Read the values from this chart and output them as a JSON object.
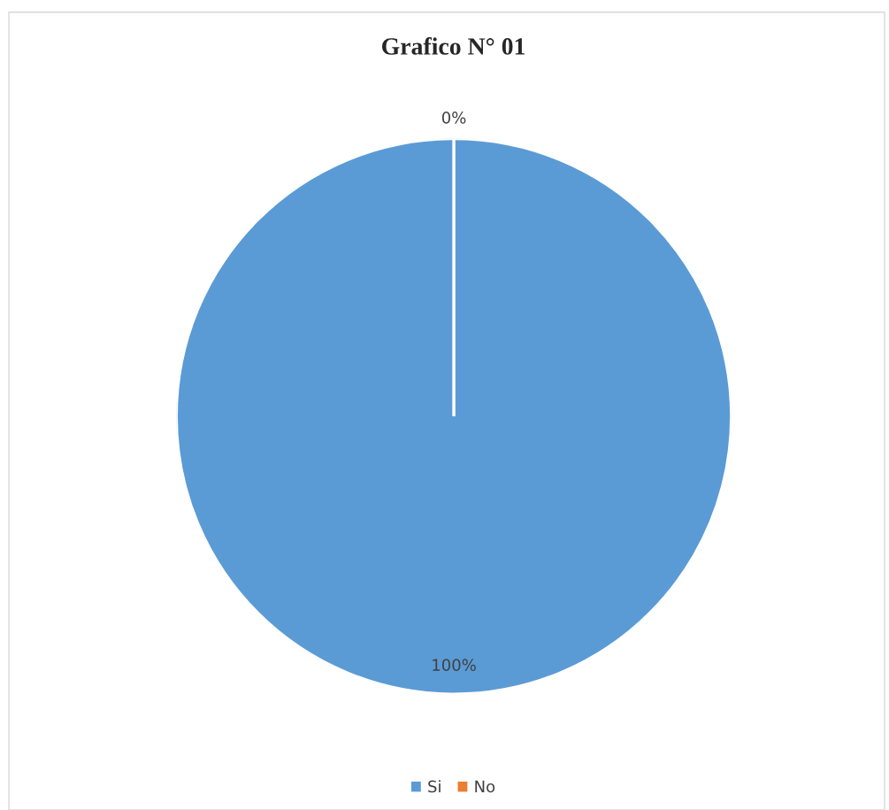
{
  "chart_data": {
    "type": "pie",
    "title": "Grafico N° 01",
    "categories": [
      "Si",
      "No"
    ],
    "values": [
      100,
      0
    ],
    "colors": [
      "#5b9bd5",
      "#ed7d31"
    ],
    "value_labels": [
      "100%",
      "0%"
    ],
    "legend": "bottom"
  }
}
